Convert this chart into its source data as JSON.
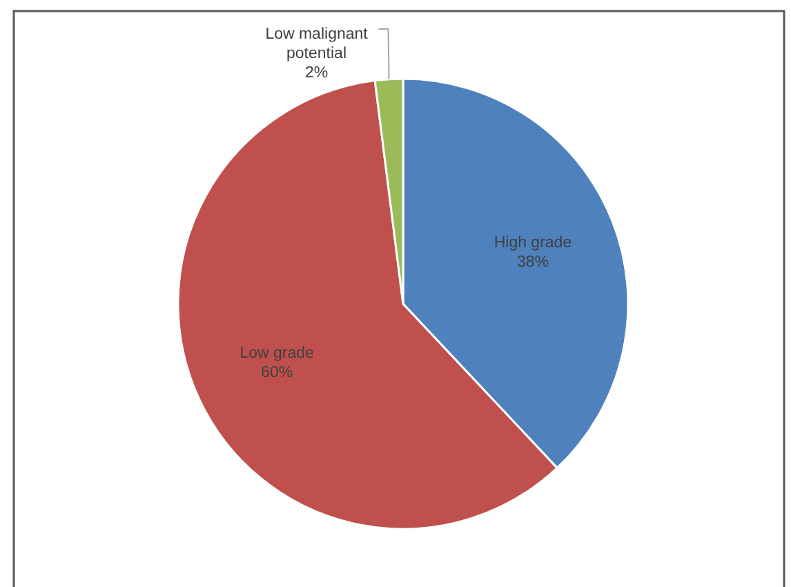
{
  "chart_data": {
    "type": "pie",
    "categories": [
      "High grade",
      "Low grade",
      "Low malignant potential"
    ],
    "values": [
      38,
      60,
      2
    ],
    "colors": [
      "#4f81bd",
      "#c0504d",
      "#9bbb59"
    ],
    "value_labels": [
      "38%",
      "60%",
      "2%"
    ]
  }
}
